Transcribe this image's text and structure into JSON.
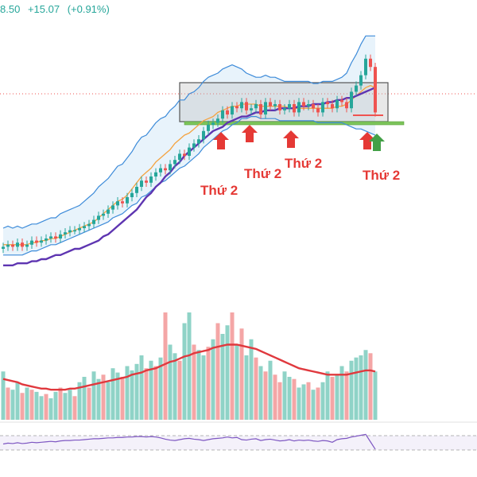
{
  "header": {
    "price_fragment": "8.50",
    "change": "+15.07",
    "change_pct": "(+0.91%)"
  },
  "colors": {
    "up": "#26a69a",
    "down": "#ef5350",
    "bb": "#3d8bd9",
    "bb_fill": "#d6e9f8",
    "ma20": "#f4a340",
    "ma50": "#5e35b1",
    "vol_ma": "#e0393e",
    "support": "#7cc45a",
    "box": "#9e9e9e",
    "dotted": "#ef5350",
    "arrow_red": "#e53935",
    "arrow_green": "#43a047",
    "rsi": "#7e57c2"
  },
  "chart_data": [
    {
      "type": "candlestick",
      "title": "",
      "bars": 79,
      "price_range": [
        0,
        100
      ],
      "close": [
        26,
        27,
        26,
        28,
        26,
        27,
        29,
        28,
        29,
        30,
        31,
        30,
        32,
        33,
        34,
        34,
        35,
        36,
        37,
        39,
        41,
        42,
        44,
        46,
        48,
        47,
        50,
        52,
        55,
        58,
        57,
        60,
        62,
        64,
        63,
        66,
        68,
        71,
        70,
        74,
        76,
        78,
        82,
        85,
        86,
        88,
        92,
        90,
        94,
        93,
        96,
        92,
        93,
        95,
        90,
        96,
        94,
        95,
        92,
        93,
        95,
        91,
        96,
        94,
        95,
        93,
        91,
        96,
        95,
        93,
        97,
        96,
        93,
        101,
        104,
        109,
        117,
        113,
        91
      ],
      "open_offset_note": "",
      "bb_upper": [
        35,
        36,
        35,
        36,
        35,
        36,
        37,
        37,
        38,
        39,
        40,
        40,
        42,
        43,
        44,
        45,
        46,
        48,
        50,
        52,
        55,
        57,
        59,
        62,
        65,
        66,
        69,
        72,
        76,
        79,
        80,
        83,
        86,
        88,
        89,
        92,
        94,
        97,
        97,
        100,
        101,
        103,
        106,
        108,
        109,
        110,
        112,
        113,
        114,
        113,
        112,
        110,
        109,
        108,
        108,
        109,
        108,
        108,
        107,
        106,
        106,
        106,
        106,
        106,
        106,
        105,
        105,
        106,
        106,
        106,
        107,
        108,
        110,
        115,
        119,
        124,
        128,
        128,
        128
      ],
      "bb_lower": [
        22,
        22,
        22,
        22,
        22,
        23,
        24,
        24,
        25,
        26,
        27,
        27,
        28,
        29,
        30,
        31,
        32,
        33,
        34,
        35,
        36,
        37,
        38,
        40,
        41,
        42,
        44,
        46,
        47,
        50,
        51,
        53,
        55,
        57,
        58,
        60,
        62,
        64,
        65,
        67,
        69,
        71,
        74,
        76,
        78,
        80,
        82,
        83,
        85,
        86,
        88,
        88,
        89,
        89,
        88,
        88,
        88,
        88,
        87,
        87,
        87,
        87,
        87,
        87,
        87,
        87,
        86,
        86,
        86,
        86,
        86,
        86,
        85,
        84,
        83,
        83,
        82,
        81,
        80
      ],
      "ma20": [
        27,
        27,
        27,
        27,
        27,
        27,
        28,
        28,
        29,
        29,
        30,
        30,
        31,
        32,
        33,
        34,
        35,
        36,
        37,
        38,
        40,
        42,
        44,
        46,
        48,
        49,
        51,
        54,
        57,
        60,
        62,
        64,
        67,
        69,
        71,
        73,
        76,
        78,
        80,
        81,
        83,
        85,
        87,
        88,
        89,
        91,
        92,
        93,
        94,
        94,
        95,
        95,
        95,
        95,
        94,
        94,
        94,
        94,
        94,
        94,
        93,
        93,
        93,
        93,
        93,
        93,
        93,
        93,
        93,
        93,
        94,
        94,
        95,
        97,
        99,
        101,
        103,
        104,
        103
      ],
      "ma50": [
        17,
        17,
        17,
        18,
        18,
        18,
        19,
        19,
        20,
        20,
        21,
        22,
        22,
        23,
        24,
        25,
        25,
        26,
        27,
        28,
        29,
        31,
        32,
        34,
        36,
        38,
        40,
        42,
        44,
        47,
        50,
        52,
        55,
        57,
        60,
        62,
        65,
        67,
        70,
        72,
        74,
        76,
        78,
        80,
        82,
        83,
        84,
        86,
        87,
        88,
        89,
        89,
        90,
        91,
        91,
        92,
        92,
        92,
        93,
        93,
        93,
        93,
        94,
        94,
        94,
        95,
        95,
        95,
        96,
        96,
        97,
        97,
        98,
        98,
        99,
        100,
        101,
        102,
        103
      ],
      "volume": [
        45,
        30,
        28,
        35,
        25,
        30,
        28,
        26,
        22,
        24,
        20,
        26,
        30,
        25,
        28,
        22,
        35,
        40,
        30,
        45,
        38,
        42,
        35,
        48,
        44,
        40,
        50,
        46,
        52,
        60,
        48,
        55,
        50,
        58,
        100,
        70,
        62,
        55,
        90,
        100,
        70,
        65,
        60,
        68,
        75,
        90,
        80,
        88,
        100,
        70,
        85,
        60,
        75,
        58,
        50,
        45,
        55,
        42,
        35,
        45,
        40,
        38,
        30,
        33,
        35,
        28,
        30,
        35,
        45,
        40,
        42,
        50,
        45,
        55,
        58,
        60,
        65,
        62,
        45
      ],
      "volume_up": [
        true,
        false,
        true,
        true,
        false,
        true,
        false,
        true,
        true,
        false,
        true,
        true,
        false,
        true,
        true,
        false,
        true,
        true,
        false,
        true,
        true,
        false,
        true,
        true,
        true,
        false,
        true,
        true,
        true,
        true,
        false,
        true,
        false,
        true,
        false,
        true,
        true,
        false,
        true,
        true,
        false,
        true,
        true,
        false,
        true,
        false,
        true,
        true,
        false,
        true,
        false,
        true,
        true,
        false,
        true,
        false,
        true,
        false,
        false,
        true,
        true,
        false,
        true,
        true,
        false,
        true,
        false,
        true,
        true,
        false,
        true,
        true,
        false,
        true,
        true,
        true,
        true,
        false,
        true
      ],
      "volume_ma": [
        38,
        37,
        36,
        35,
        33,
        32,
        31,
        30,
        29,
        29,
        28,
        28,
        28,
        28,
        29,
        29,
        30,
        31,
        32,
        33,
        34,
        35,
        36,
        37,
        38,
        39,
        40,
        42,
        43,
        44,
        46,
        47,
        48,
        50,
        52,
        54,
        55,
        57,
        59,
        60,
        62,
        63,
        64,
        65,
        67,
        68,
        69,
        70,
        70,
        70,
        69,
        68,
        67,
        66,
        64,
        62,
        60,
        58,
        56,
        54,
        52,
        50,
        48,
        47,
        46,
        45,
        44,
        43,
        42,
        42,
        42,
        42,
        42,
        43,
        44,
        45,
        46,
        46,
        45
      ],
      "rsi": [
        50,
        52,
        51,
        53,
        51,
        52,
        54,
        53,
        54,
        55,
        56,
        55,
        57,
        58,
        58,
        59,
        59,
        60,
        61,
        62,
        62,
        63,
        64,
        64,
        65,
        65,
        66,
        66,
        67,
        67,
        66,
        67,
        66,
        64,
        61,
        59,
        58,
        60,
        62,
        63,
        61,
        60,
        58,
        60,
        62,
        63,
        64,
        66,
        64,
        65,
        60,
        59,
        61,
        62,
        58,
        60,
        61,
        59,
        57,
        58,
        60,
        57,
        59,
        58,
        59,
        57,
        56,
        58,
        57,
        54,
        60,
        62,
        63,
        66,
        68,
        70,
        72,
        55,
        38
      ],
      "annotations": [
        "Thứ 2",
        "Thứ 2",
        "Thứ 2",
        "Thứ 2"
      ]
    }
  ]
}
